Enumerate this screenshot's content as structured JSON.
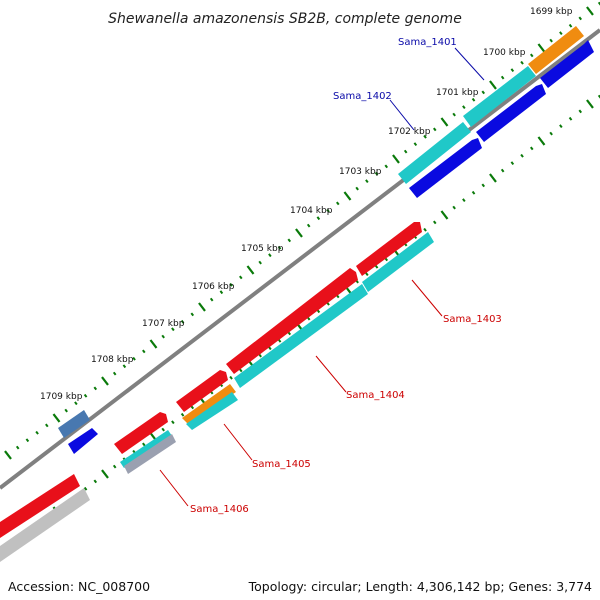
{
  "title": "Shewanella amazonensis SB2B, complete genome",
  "ticks": [
    {
      "label": "1699 kbp"
    },
    {
      "label": "1700 kbp"
    },
    {
      "label": "1701 kbp"
    },
    {
      "label": "1702 kbp"
    },
    {
      "label": "1703 kbp"
    },
    {
      "label": "1704 kbp"
    },
    {
      "label": "1705 kbp"
    },
    {
      "label": "1706 kbp"
    },
    {
      "label": "1707 kbp"
    },
    {
      "label": "1708 kbp"
    },
    {
      "label": "1709 kbp"
    }
  ],
  "genes": [
    {
      "label": "Sama_1401",
      "color": "#0a0aa8"
    },
    {
      "label": "Sama_1402",
      "color": "#0a0aa8"
    },
    {
      "label": "Sama_1403",
      "color": "#cc0000"
    },
    {
      "label": "Sama_1404",
      "color": "#cc0000"
    },
    {
      "label": "Sama_1405",
      "color": "#cc0000"
    },
    {
      "label": "Sama_1406",
      "color": "#cc0000"
    }
  ],
  "colors": {
    "forward_cds": "#e8101a",
    "reverse_cds": "#0a0ae0",
    "gene_cyan": "#20c8c8",
    "gene_orange": "#f08c10",
    "gene_gray": "#b8b8b8",
    "gene_steel": "#4878b0",
    "backbone": "#808080",
    "tick_mark": "#0a7a0a"
  },
  "footer": {
    "accession": "Accession: NC_008700",
    "summary": "Topology: circular; Length: 4,306,142 bp; Genes: 3,774"
  }
}
